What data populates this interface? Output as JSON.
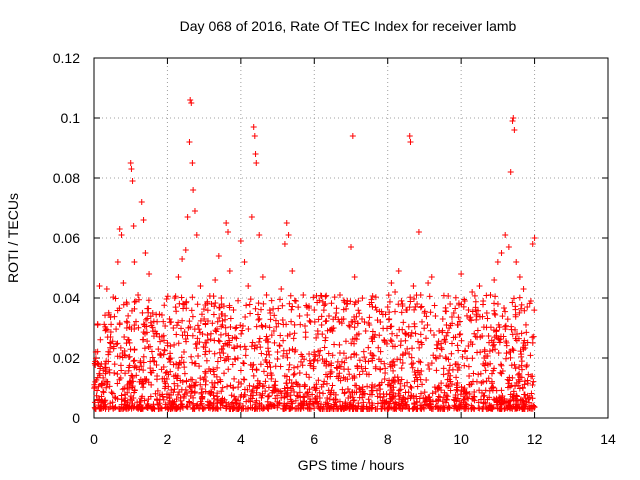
{
  "chart_data": {
    "type": "scatter",
    "title": "Day 068 of 2016, Rate Of TEC Index for receiver lamb",
    "xlabel": "GPS time / hours",
    "ylabel": "ROTI / TECUs",
    "xlim": [
      0,
      14
    ],
    "ylim": [
      0,
      0.12
    ],
    "grid": true,
    "legend": "none",
    "marker": "+",
    "color": "#ff0000",
    "xticks": [
      "0",
      "2",
      "4",
      "6",
      "8",
      "10",
      "12",
      "14"
    ],
    "yticks": [
      "0",
      "0.02",
      "0.04",
      "0.06",
      "0.08",
      "0.1",
      "0.12"
    ],
    "xtick_values": [
      0,
      2,
      4,
      6,
      8,
      10,
      12,
      14
    ],
    "ytick_values": [
      0,
      0.02,
      0.04,
      0.06,
      0.08,
      0.1,
      0.12
    ],
    "data_extent_hours": [
      0,
      12.0
    ],
    "series": [
      {
        "name": "ROTI",
        "points": [
          [
            0.05,
            0.022
          ],
          [
            0.1,
            0.031
          ],
          [
            0.15,
            0.044
          ],
          [
            0.2,
            0.018
          ],
          [
            0.3,
            0.012
          ],
          [
            0.35,
            0.043
          ],
          [
            0.45,
            0.027
          ],
          [
            0.55,
            0.015
          ],
          [
            0.65,
            0.052
          ],
          [
            0.7,
            0.063
          ],
          [
            0.75,
            0.061
          ],
          [
            0.8,
            0.045
          ],
          [
            0.9,
            0.038
          ],
          [
            0.95,
            0.026
          ],
          [
            1.0,
            0.085
          ],
          [
            1.02,
            0.083
          ],
          [
            1.05,
            0.079
          ],
          [
            1.08,
            0.064
          ],
          [
            1.1,
            0.052
          ],
          [
            1.2,
            0.041
          ],
          [
            1.3,
            0.072
          ],
          [
            1.35,
            0.066
          ],
          [
            1.4,
            0.055
          ],
          [
            1.5,
            0.048
          ],
          [
            1.6,
            0.035
          ],
          [
            1.7,
            0.028
          ],
          [
            1.8,
            0.021
          ],
          [
            1.9,
            0.017
          ],
          [
            2.0,
            0.025
          ],
          [
            2.1,
            0.032
          ],
          [
            2.2,
            0.04
          ],
          [
            2.3,
            0.047
          ],
          [
            2.4,
            0.053
          ],
          [
            2.5,
            0.056
          ],
          [
            2.55,
            0.067
          ],
          [
            2.6,
            0.092
          ],
          [
            2.62,
            0.106
          ],
          [
            2.65,
            0.105
          ],
          [
            2.68,
            0.085
          ],
          [
            2.7,
            0.076
          ],
          [
            2.75,
            0.069
          ],
          [
            2.8,
            0.061
          ],
          [
            2.9,
            0.044
          ],
          [
            3.0,
            0.033
          ],
          [
            3.1,
            0.026
          ],
          [
            3.2,
            0.038
          ],
          [
            3.3,
            0.046
          ],
          [
            3.4,
            0.054
          ],
          [
            3.5,
            0.031
          ],
          [
            3.6,
            0.065
          ],
          [
            3.65,
            0.062
          ],
          [
            3.7,
            0.049
          ],
          [
            3.8,
            0.036
          ],
          [
            3.9,
            0.024
          ],
          [
            4.0,
            0.059
          ],
          [
            4.1,
            0.052
          ],
          [
            4.2,
            0.044
          ],
          [
            4.3,
            0.067
          ],
          [
            4.35,
            0.097
          ],
          [
            4.38,
            0.094
          ],
          [
            4.4,
            0.088
          ],
          [
            4.42,
            0.085
          ],
          [
            4.5,
            0.061
          ],
          [
            4.6,
            0.047
          ],
          [
            4.7,
            0.041
          ],
          [
            4.8,
            0.035
          ],
          [
            4.9,
            0.029
          ],
          [
            5.0,
            0.022
          ],
          [
            5.1,
            0.043
          ],
          [
            5.2,
            0.058
          ],
          [
            5.25,
            0.065
          ],
          [
            5.3,
            0.061
          ],
          [
            5.4,
            0.049
          ],
          [
            5.5,
            0.039
          ],
          [
            5.6,
            0.034
          ],
          [
            5.7,
            0.041
          ],
          [
            5.8,
            0.037
          ],
          [
            5.9,
            0.032
          ],
          [
            6.0,
            0.036
          ],
          [
            6.1,
            0.028
          ],
          [
            6.2,
            0.031
          ],
          [
            6.3,
            0.038
          ],
          [
            6.4,
            0.034
          ],
          [
            6.5,
            0.029
          ],
          [
            6.6,
            0.035
          ],
          [
            6.7,
            0.041
          ],
          [
            6.8,
            0.033
          ],
          [
            6.9,
            0.038
          ],
          [
            7.0,
            0.057
          ],
          [
            7.05,
            0.094
          ],
          [
            7.1,
            0.047
          ],
          [
            7.2,
            0.039
          ],
          [
            7.3,
            0.033
          ],
          [
            7.4,
            0.029
          ],
          [
            7.5,
            0.031
          ],
          [
            7.6,
            0.027
          ],
          [
            7.7,
            0.036
          ],
          [
            7.8,
            0.032
          ],
          [
            7.9,
            0.026
          ],
          [
            8.0,
            0.037
          ],
          [
            8.1,
            0.045
          ],
          [
            8.2,
            0.042
          ],
          [
            8.3,
            0.049
          ],
          [
            8.4,
            0.038
          ],
          [
            8.5,
            0.036
          ],
          [
            8.6,
            0.094
          ],
          [
            8.62,
            0.092
          ],
          [
            8.7,
            0.044
          ],
          [
            8.8,
            0.038
          ],
          [
            8.85,
            0.062
          ],
          [
            8.9,
            0.041
          ],
          [
            9.0,
            0.035
          ],
          [
            9.1,
            0.045
          ],
          [
            9.2,
            0.047
          ],
          [
            9.3,
            0.034
          ],
          [
            9.4,
            0.029
          ],
          [
            9.5,
            0.033
          ],
          [
            9.6,
            0.031
          ],
          [
            9.7,
            0.038
          ],
          [
            9.8,
            0.035
          ],
          [
            9.9,
            0.031
          ],
          [
            10.0,
            0.048
          ],
          [
            10.1,
            0.039
          ],
          [
            10.2,
            0.036
          ],
          [
            10.3,
            0.042
          ],
          [
            10.4,
            0.036
          ],
          [
            10.5,
            0.044
          ],
          [
            10.6,
            0.039
          ],
          [
            10.7,
            0.035
          ],
          [
            10.8,
            0.041
          ],
          [
            10.9,
            0.046
          ],
          [
            11.0,
            0.052
          ],
          [
            11.1,
            0.055
          ],
          [
            11.2,
            0.061
          ],
          [
            11.3,
            0.057
          ],
          [
            11.35,
            0.082
          ],
          [
            11.4,
            0.099
          ],
          [
            11.42,
            0.1
          ],
          [
            11.45,
            0.096
          ],
          [
            11.5,
            0.052
          ],
          [
            11.6,
            0.047
          ],
          [
            11.7,
            0.043
          ],
          [
            11.8,
            0.037
          ],
          [
            11.9,
            0.039
          ],
          [
            11.95,
            0.058
          ],
          [
            12.0,
            0.06
          ]
        ]
      }
    ]
  }
}
